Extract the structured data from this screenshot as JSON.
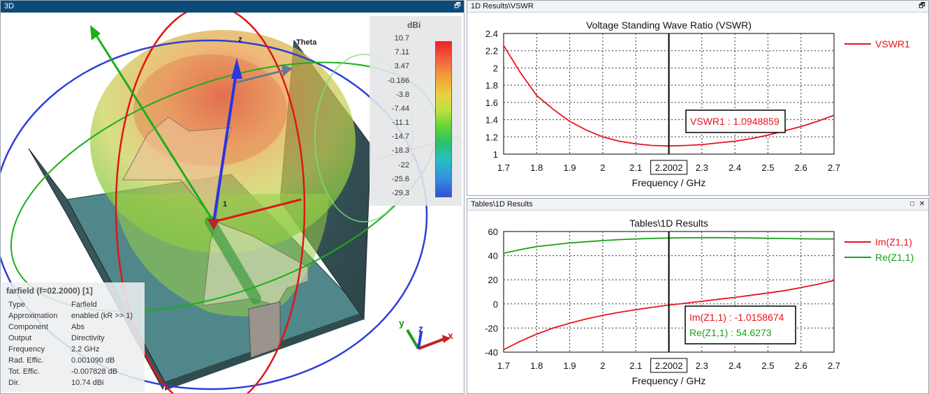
{
  "panel_3d": {
    "title": "3D",
    "unit": "dBi",
    "colorbar_ticks": [
      "10.7",
      "7.11",
      "3.47",
      "-0.166",
      "-3.8",
      "-7.44",
      "-11.1",
      "-14.7",
      "-18.3",
      "-22",
      "-25.6",
      "-29.3"
    ],
    "axis_theta": "Theta",
    "axis_z": "z",
    "port_label": "1",
    "triad": {
      "x": "x",
      "y": "y",
      "z": "z"
    },
    "info": {
      "title": "farfield (f=02.2000) [1]",
      "rows": [
        {
          "key": "Type",
          "value": "Farfield"
        },
        {
          "key": "Approximation",
          "value": "enabled (kR >> 1)"
        },
        {
          "key": "Component",
          "value": "Abs"
        },
        {
          "key": "Output",
          "value": "Directivity"
        },
        {
          "key": "Frequency",
          "value": "2.2 GHz"
        },
        {
          "key": "Rad. Effic.",
          "value": "0.001090 dB"
        },
        {
          "key": "Tot. Effic.",
          "value": "-0.007828 dB"
        },
        {
          "key": "Dir.",
          "value": "10.74 dBi"
        }
      ]
    }
  },
  "panel_vswr": {
    "title": "1D Results\\VSWR"
  },
  "panel_tables": {
    "title": "Tables\\1D Results"
  },
  "window_buttons": {
    "restore": "🗗",
    "maximize": "□",
    "close": "✕"
  },
  "colors": {
    "red": "#e8141e",
    "green": "#1aa01a",
    "title_bar": "#0c4a7a"
  },
  "chart_data": [
    {
      "type": "line",
      "title": "Voltage Standing Wave Ratio (VSWR)",
      "xlabel": "Frequency / GHz",
      "ylabel": "",
      "xlim": [
        1.7,
        2.7
      ],
      "ylim": [
        1,
        2.4
      ],
      "x_ticks": [
        "1.7",
        "1.8",
        "1.9",
        "2",
        "2.1",
        "2.2002",
        "2.3",
        "2.4",
        "2.5",
        "2.6",
        "2.7"
      ],
      "y_ticks": [
        "1",
        "1.2",
        "1.4",
        "1.6",
        "1.8",
        "2",
        "2.2",
        "2.4"
      ],
      "marker_x": 2.2002,
      "marker_label": "2.2002",
      "grid": true,
      "legend_position": "right",
      "series": [
        {
          "name": "VSWR1",
          "color": "#e8141e",
          "x": [
            1.7,
            1.75,
            1.8,
            1.85,
            1.9,
            1.95,
            2.0,
            2.05,
            2.1,
            2.15,
            2.2,
            2.25,
            2.3,
            2.35,
            2.4,
            2.45,
            2.5,
            2.55,
            2.6,
            2.65,
            2.7
          ],
          "y": [
            2.26,
            1.95,
            1.68,
            1.52,
            1.38,
            1.28,
            1.2,
            1.15,
            1.12,
            1.1,
            1.095,
            1.1,
            1.11,
            1.13,
            1.15,
            1.18,
            1.22,
            1.27,
            1.32,
            1.38,
            1.45
          ]
        }
      ],
      "annotations": [
        {
          "text": "VSWR1 : 1.0948859",
          "color": "#e8141e"
        }
      ]
    },
    {
      "type": "line",
      "title": "Tables\\1D Results",
      "xlabel": "Frequency / GHz",
      "ylabel": "",
      "xlim": [
        1.7,
        2.7
      ],
      "ylim": [
        -40,
        60
      ],
      "x_ticks": [
        "1.7",
        "1.8",
        "1.9",
        "2",
        "2.1",
        "2.2002",
        "2.3",
        "2.4",
        "2.5",
        "2.6",
        "2.7"
      ],
      "y_ticks": [
        "-40",
        "-20",
        "0",
        "20",
        "40",
        "60"
      ],
      "marker_x": 2.2002,
      "marker_label": "2.2002",
      "grid": true,
      "legend_position": "right",
      "series": [
        {
          "name": "Im(Z1,1)",
          "color": "#e8141e",
          "x": [
            1.7,
            1.75,
            1.8,
            1.85,
            1.9,
            1.95,
            2.0,
            2.05,
            2.1,
            2.15,
            2.2,
            2.25,
            2.3,
            2.35,
            2.4,
            2.45,
            2.5,
            2.55,
            2.6,
            2.65,
            2.7
          ],
          "y": [
            -38,
            -31,
            -25,
            -20,
            -16,
            -12.5,
            -9.5,
            -7,
            -4.8,
            -2.8,
            -1,
            0.5,
            2.2,
            3.8,
            5.4,
            7.2,
            9,
            11,
            13.5,
            16.2,
            19.5
          ]
        },
        {
          "name": "Re(Z1,1)",
          "color": "#1aa01a",
          "x": [
            1.7,
            1.75,
            1.8,
            1.85,
            1.9,
            1.95,
            2.0,
            2.05,
            2.1,
            2.15,
            2.2,
            2.25,
            2.3,
            2.35,
            2.4,
            2.45,
            2.5,
            2.55,
            2.6,
            2.65,
            2.7
          ],
          "y": [
            42,
            45,
            47.5,
            49,
            50.5,
            51.5,
            52.5,
            53.3,
            53.9,
            54.3,
            54.6,
            54.8,
            54.9,
            54.9,
            54.8,
            54.6,
            54.4,
            54.2,
            54.0,
            53.9,
            53.8
          ]
        }
      ],
      "annotations": [
        {
          "text": "Im(Z1,1) : -1.0158674",
          "color": "#e8141e"
        },
        {
          "text": "Re(Z1,1) : 54.6273",
          "color": "#1aa01a"
        }
      ]
    }
  ]
}
